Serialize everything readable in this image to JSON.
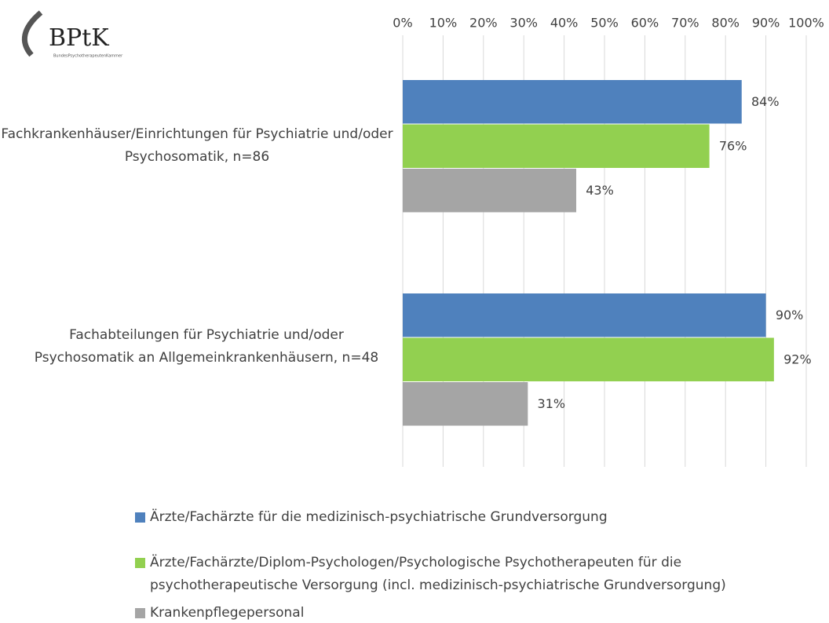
{
  "logo": {
    "text": "BPtK",
    "subtitle": "BundesPsychotherapeutenKammer"
  },
  "chart_data": {
    "type": "hbar",
    "categories": [
      "Fachkrankenhäuser/Einrichtungen für Psychiatrie und/oder Psychosomatik, n=86",
      "Fachabteilungen für Psychiatrie und/oder Psychosomatik an Allgemeinkrankenhäusern, n=48"
    ],
    "series": [
      {
        "name": "Ärzte/Fachärzte für die medizinisch-psychiatrische Grundversorgung",
        "color": "#4f81bd",
        "values": [
          84,
          90
        ],
        "value_labels": [
          "84%",
          "90%"
        ]
      },
      {
        "name": "Ärzte/Fachärzte/Diplom-Psychologen/Psychologische Psychotherapeuten für die psychotherapeutische Versorgung (incl. medizinisch-psychiatrische Grundversorgung)",
        "color": "#92d050",
        "values": [
          76,
          92
        ],
        "value_labels": [
          "76%",
          "92%"
        ]
      },
      {
        "name": "Krankenpflegepersonal",
        "color": "#a5a5a5",
        "values": [
          43,
          31
        ],
        "value_labels": [
          "43%",
          "31%"
        ]
      }
    ],
    "xlim": [
      0,
      100
    ],
    "xticks": [
      {
        "value": 0,
        "label": "0%"
      },
      {
        "value": 10,
        "label": "10%"
      },
      {
        "value": 20,
        "label": "20%"
      },
      {
        "value": 30,
        "label": "30%"
      },
      {
        "value": 40,
        "label": "40%"
      },
      {
        "value": 50,
        "label": "50%"
      },
      {
        "value": 60,
        "label": "60%"
      },
      {
        "value": 70,
        "label": "70%"
      },
      {
        "value": 80,
        "label": "80%"
      },
      {
        "value": 90,
        "label": "90%"
      },
      {
        "value": 100,
        "label": "100%"
      }
    ],
    "grid": true,
    "legend": "bottom"
  }
}
